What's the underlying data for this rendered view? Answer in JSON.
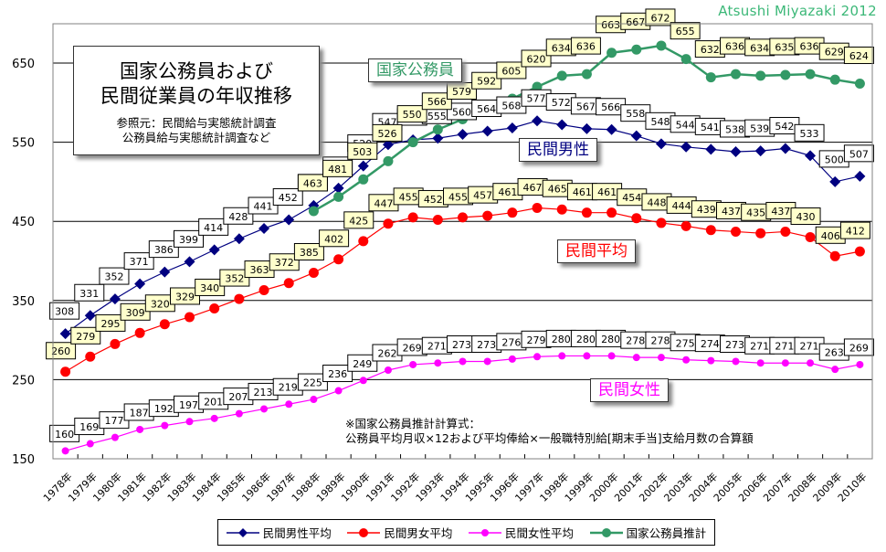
{
  "credit": "Atsushi Miyazaki 2012",
  "title_box": {
    "line1": "国家公務員および",
    "line2": "民間従業員の年収推移",
    "source_line1": "参照元：民間給与実態統計調査",
    "source_line2": "公務員給与実態統計調査など"
  },
  "callouts": {
    "national": "国家公務員",
    "male": "民間男性",
    "average": "民間平均",
    "female": "民間女性"
  },
  "note": {
    "line1": "※国家公務員推計計算式：",
    "line2": "公務員平均月収×12および平均俸給×一般職特別給[期末手当]支給月数の合算額"
  },
  "colors": {
    "male": "#000080",
    "average": "#ff0000",
    "female": "#ff00ff",
    "national": "#339966",
    "label_yellow": "#ffffcc",
    "label_white": "#ffffff"
  },
  "legend": [
    {
      "label": "民間男性平均",
      "key": "male"
    },
    {
      "label": "民間男女平均",
      "key": "average"
    },
    {
      "label": "民間女性平均",
      "key": "female"
    },
    {
      "label": "国家公務員推計",
      "key": "national"
    }
  ],
  "chart_data": {
    "type": "line",
    "title": "国家公務員および民間従業員の年収推移",
    "xlabel": "",
    "ylabel": "",
    "ylim": [
      150,
      700
    ],
    "yticks": [
      150,
      250,
      350,
      450,
      550,
      650
    ],
    "grid": true,
    "legend_position": "bottom",
    "categories": [
      "1978年",
      "1979年",
      "1980年",
      "1981年",
      "1982年",
      "1983年",
      "1984年",
      "1985年",
      "1986年",
      "1987年",
      "1988年",
      "1989年",
      "1990年",
      "1991年",
      "1992年",
      "1993年",
      "1994年",
      "1995年",
      "1996年",
      "1997年",
      "1998年",
      "1999年",
      "2000年",
      "2001年",
      "2002年",
      "2003年",
      "2004年",
      "2005年",
      "2006年",
      "2007年",
      "2008年",
      "2009年",
      "2010年"
    ],
    "series": [
      {
        "name": "民間男性平均",
        "key": "male",
        "marker": "diamond",
        "label_bg": "white",
        "values": [
          308,
          331,
          352,
          371,
          386,
          399,
          414,
          428,
          441,
          452,
          470,
          492,
          520,
          547,
          553,
          555,
          560,
          564,
          568,
          577,
          572,
          567,
          566,
          558,
          548,
          544,
          541,
          538,
          539,
          542,
          533,
          500,
          507
        ]
      },
      {
        "name": "民間男女平均",
        "key": "average",
        "marker": "circle",
        "label_bg": "yellow",
        "values": [
          260,
          279,
          295,
          309,
          320,
          329,
          340,
          352,
          363,
          372,
          385,
          402,
          425,
          447,
          455,
          452,
          455,
          457,
          461,
          467,
          465,
          461,
          461,
          454,
          448,
          444,
          439,
          437,
          435,
          437,
          430,
          406,
          412
        ]
      },
      {
        "name": "民間女性平均",
        "key": "female",
        "marker": "circle-small",
        "label_bg": "white",
        "values": [
          160,
          169,
          177,
          187,
          192,
          197,
          201,
          207,
          213,
          219,
          225,
          236,
          249,
          262,
          269,
          271,
          273,
          273,
          276,
          279,
          280,
          280,
          280,
          278,
          278,
          275,
          274,
          273,
          271,
          271,
          271,
          263,
          269
        ]
      },
      {
        "name": "国家公務員推計",
        "key": "national",
        "marker": "circle",
        "label_bg": "yellow",
        "values": [
          null,
          null,
          null,
          null,
          null,
          null,
          null,
          null,
          null,
          null,
          463,
          481,
          503,
          526,
          550,
          566,
          579,
          592,
          605,
          620,
          634,
          636,
          663,
          667,
          672,
          655,
          632,
          636,
          634,
          635,
          636,
          629,
          624
        ]
      }
    ]
  }
}
